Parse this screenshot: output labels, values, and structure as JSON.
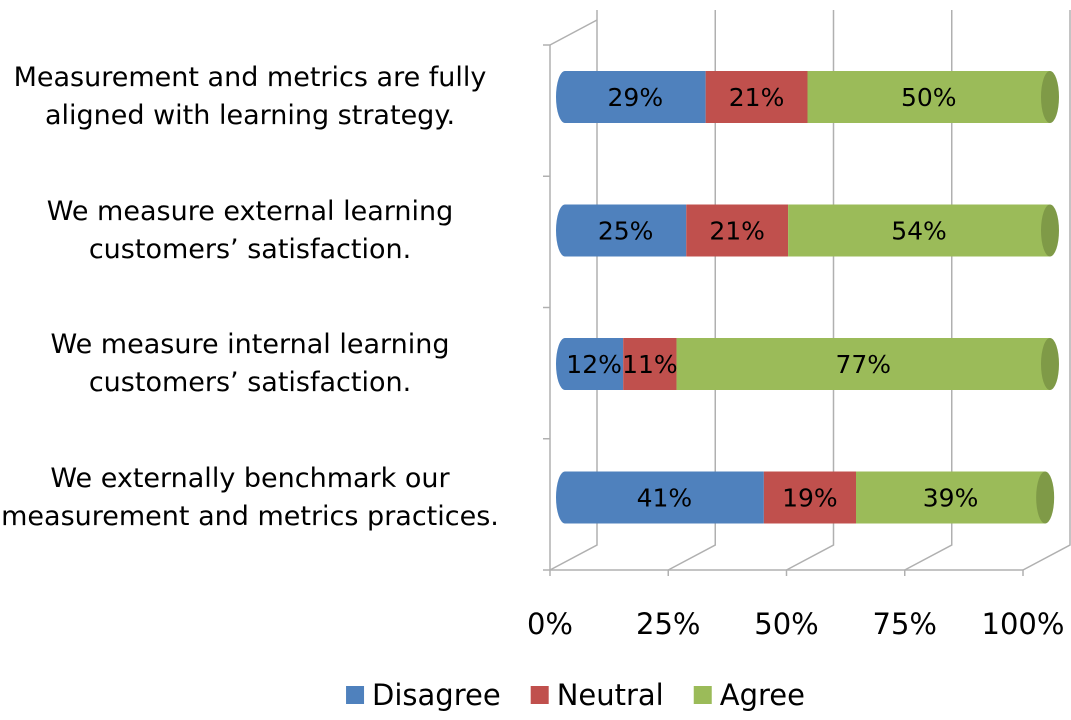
{
  "chart_data": {
    "type": "bar",
    "stacked": true,
    "orientation": "horizontal",
    "categories": [
      "Measurement and metrics are fully\naligned with learning strategy.",
      "We measure external learning\ncustomers’ satisfaction.",
      "We measure internal learning\ncustomers’ satisfaction.",
      "We externally benchmark our\nmeasurement and metrics practices."
    ],
    "series": [
      {
        "name": "Disagree",
        "color": "#4f81bd",
        "values": [
          29,
          25,
          12,
          41
        ],
        "value_labels": [
          "29%",
          "25%",
          "12%",
          "41%"
        ]
      },
      {
        "name": "Neutral",
        "color": "#c0504d",
        "values": [
          21,
          21,
          11,
          19
        ],
        "value_labels": [
          "21%",
          "21%",
          "11%",
          "19%"
        ]
      },
      {
        "name": "Agree",
        "color": "#9bbb59",
        "values": [
          50,
          54,
          77,
          39
        ],
        "value_labels": [
          "50%",
          "54%",
          "77%",
          "39%"
        ]
      }
    ],
    "xlim": [
      0,
      100
    ],
    "xticks": [
      {
        "value": 0,
        "label": "0%"
      },
      {
        "value": 25,
        "label": "25%"
      },
      {
        "value": 50,
        "label": "50%"
      },
      {
        "value": 75,
        "label": "75%"
      },
      {
        "value": 100,
        "label": "100%"
      }
    ],
    "grid": true,
    "legend": "bottom"
  }
}
